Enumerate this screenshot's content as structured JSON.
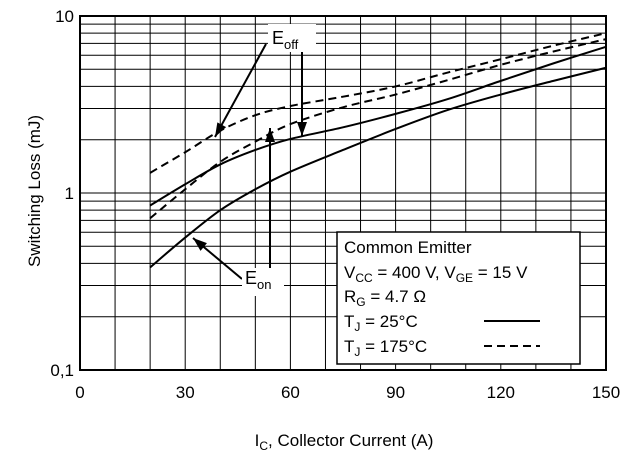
{
  "chart_data": {
    "type": "line",
    "title": "",
    "xlabel": "Collector Current (A)",
    "xlabel_symbol": "I",
    "xlabel_symbol_sub": "C",
    "xlabel_sep": ", ",
    "ylabel": "Switching Loss (mJ)",
    "x_scale": "linear",
    "y_scale": "log",
    "xlim": [
      0,
      150
    ],
    "ylim": [
      0.1,
      10
    ],
    "x_ticks": [
      0,
      30,
      60,
      90,
      120,
      150
    ],
    "x_tick_labels": [
      "0",
      "30",
      "60",
      "90",
      "120",
      "150"
    ],
    "y_ticks": [
      0.1,
      1,
      10
    ],
    "y_tick_labels": [
      "0,1",
      "1",
      "10"
    ],
    "grid": true,
    "series": [
      {
        "name": "E_off, T_J = 25°C",
        "style": "solid",
        "x": [
          20,
          30,
          40,
          50,
          60,
          75,
          90,
          105,
          120,
          135,
          150
        ],
        "y": [
          0.85,
          1.12,
          1.45,
          1.75,
          2.02,
          2.35,
          2.8,
          3.4,
          4.3,
          5.4,
          6.7
        ]
      },
      {
        "name": "E_on, T_J = 25°C",
        "style": "solid",
        "x": [
          20,
          30,
          40,
          50,
          60,
          75,
          90,
          105,
          120,
          135,
          150
        ],
        "y": [
          0.38,
          0.56,
          0.8,
          1.05,
          1.32,
          1.75,
          2.3,
          2.95,
          3.6,
          4.3,
          5.1
        ]
      },
      {
        "name": "E_off, T_J = 175°C",
        "style": "dashed",
        "x": [
          20,
          30,
          40,
          50,
          60,
          75,
          90,
          105,
          120,
          135,
          150
        ],
        "y": [
          1.3,
          1.7,
          2.25,
          2.75,
          3.1,
          3.5,
          4.0,
          4.8,
          5.7,
          6.8,
          8.0
        ]
      },
      {
        "name": "E_on, T_J = 175°C",
        "style": "dashed",
        "x": [
          20,
          30,
          40,
          50,
          60,
          75,
          90,
          105,
          120,
          135,
          150
        ],
        "y": [
          0.72,
          1.05,
          1.5,
          1.95,
          2.45,
          3.05,
          3.6,
          4.35,
          5.3,
          6.3,
          7.4
        ]
      }
    ],
    "annotations": {
      "eoff": {
        "base": "E",
        "sub": "off"
      },
      "eon": {
        "base": "E",
        "sub": "on"
      }
    },
    "legend": {
      "placement": "bottom-right",
      "title": "Common Emitter",
      "vcc_symbol": "V",
      "vcc_sub": "CC",
      "vcc_value": " = 400 V, ",
      "vge_symbol": "V",
      "vge_sub": "GE",
      "vge_value": " = 15 V",
      "rg_symbol": "R",
      "rg_sub": "G",
      "rg_value": " = 4.7 Ω",
      "t25_symbol": "T",
      "t25_sub": "J",
      "t25_value": " = 25°C",
      "t175_symbol": "T",
      "t175_sub": "J",
      "t175_value": " = 175°C"
    }
  }
}
